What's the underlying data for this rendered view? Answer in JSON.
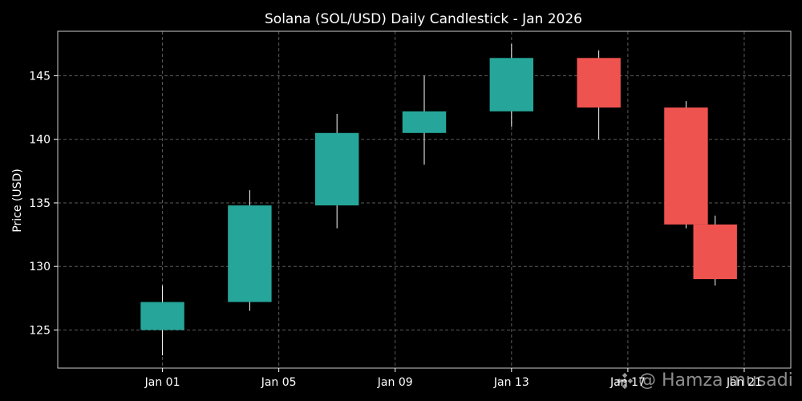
{
  "chart_data": {
    "type": "candlestick",
    "title": "Solana (SOL/USD) Daily Candlestick - Jan 2026",
    "xlabel": "",
    "ylabel": "Price (USD)",
    "ylim": [
      122,
      148.5
    ],
    "xlim": [
      -2.6,
      22.6
    ],
    "yticks": [
      125,
      130,
      135,
      140,
      145
    ],
    "xticks": [
      {
        "day": 1,
        "label": "Jan 01"
      },
      {
        "day": 5,
        "label": "Jan 05"
      },
      {
        "day": 9,
        "label": "Jan 09"
      },
      {
        "day": 13,
        "label": "Jan 13"
      },
      {
        "day": 17,
        "label": "Jan 17"
      },
      {
        "day": 21,
        "label": "Jan 21"
      }
    ],
    "grid": true,
    "colors": {
      "up": "#26a69a",
      "down": "#ef5350"
    },
    "candles": [
      {
        "day": 1,
        "open": 125.0,
        "high": 128.5,
        "low": 123.0,
        "close": 127.2
      },
      {
        "day": 4,
        "open": 127.2,
        "high": 136.0,
        "low": 126.5,
        "close": 134.8
      },
      {
        "day": 7,
        "open": 134.8,
        "high": 142.0,
        "low": 133.0,
        "close": 140.5
      },
      {
        "day": 10,
        "open": 140.5,
        "high": 145.0,
        "low": 138.0,
        "close": 142.2
      },
      {
        "day": 13,
        "open": 142.2,
        "high": 147.5,
        "low": 141.0,
        "close": 146.4
      },
      {
        "day": 16,
        "open": 146.4,
        "high": 147.0,
        "low": 140.0,
        "close": 142.5
      },
      {
        "day": 19,
        "open": 142.5,
        "high": 143.0,
        "low": 133.0,
        "close": 133.3
      },
      {
        "day": 20,
        "open": 133.3,
        "high": 134.0,
        "low": 128.5,
        "close": 129.0
      }
    ]
  },
  "watermark": {
    "text": "@ Hamza musadi",
    "icon": "binance-icon"
  }
}
